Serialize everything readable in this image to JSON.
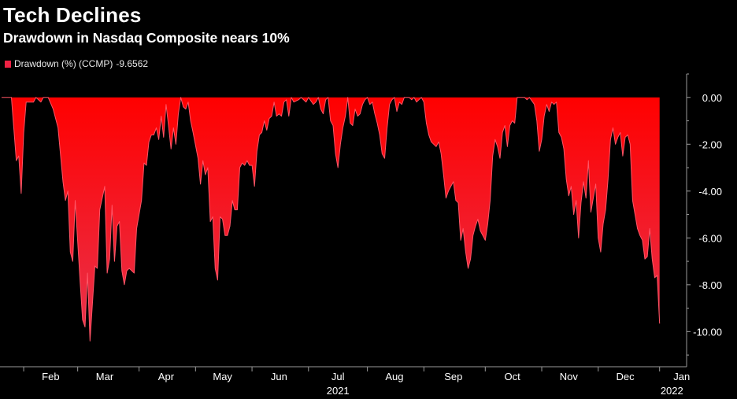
{
  "title": "Tech Declines",
  "subtitle": "Drawdown in Nasdaq Composite nears 10%",
  "legend": {
    "label": "Drawdown (%) (CCMP)",
    "last_value": "-9.6562",
    "color": "#ee2244"
  },
  "colors": {
    "fill_top": "#ff0000",
    "fill_bottom": "#e8344e",
    "line": "#ff5566",
    "axis": "#9a9a9a",
    "text": "#ffffff"
  },
  "chart_data": {
    "type": "area",
    "title": "Tech Declines",
    "subtitle": "Drawdown in Nasdaq Composite nears 10%",
    "xlabel": "",
    "ylabel": "",
    "ylim": [
      -11.5,
      1.0
    ],
    "y_ticks": [
      "0.00",
      "-2.00",
      "-4.00",
      "-6.00",
      "-8.00",
      "-10.00"
    ],
    "y_tick_values": [
      0,
      -2,
      -4,
      -6,
      -8,
      -10
    ],
    "x_range_days": [
      0,
      279
    ],
    "x_ticks": [
      {
        "label": "Feb",
        "day": 20
      },
      {
        "label": "Mar",
        "day": 42
      },
      {
        "label": "Apr",
        "day": 67
      },
      {
        "label": "May",
        "day": 90
      },
      {
        "label": "Jun",
        "day": 113
      },
      {
        "label": "Jul",
        "day": 137
      },
      {
        "label": "Aug",
        "day": 160
      },
      {
        "label": "Sep",
        "day": 184
      },
      {
        "label": "Oct",
        "day": 208
      },
      {
        "label": "Nov",
        "day": 231
      },
      {
        "label": "Dec",
        "day": 254
      },
      {
        "label": "Jan",
        "day": 277
      }
    ],
    "x_minor_ticks": [
      9,
      31,
      56,
      79,
      102,
      125,
      149,
      172,
      197,
      220,
      243,
      268
    ],
    "year_labels": [
      {
        "label": "2021",
        "day": 137
      },
      {
        "label": "2022",
        "day": 273
      }
    ],
    "series": [
      {
        "name": "Drawdown (%) (CCMP)",
        "last_value": -9.6562,
        "points": [
          [
            0,
            0
          ],
          [
            4,
            0
          ],
          [
            6,
            -2.7
          ],
          [
            7,
            -2.5
          ],
          [
            8,
            -4.1
          ],
          [
            9,
            -1.5
          ],
          [
            10,
            -0.2
          ],
          [
            13,
            -0.2
          ],
          [
            14,
            0
          ],
          [
            16,
            -0.2
          ],
          [
            17,
            0
          ],
          [
            19,
            0
          ],
          [
            21,
            -0.5
          ],
          [
            23,
            -1.3
          ],
          [
            25,
            -3.6
          ],
          [
            26,
            -4.4
          ],
          [
            27,
            -4.0
          ],
          [
            28,
            -6.6
          ],
          [
            29,
            -7.0
          ],
          [
            30,
            -4.4
          ],
          [
            32,
            -7.9
          ],
          [
            33,
            -9.5
          ],
          [
            34,
            -9.8
          ],
          [
            35,
            -7.5
          ],
          [
            36,
            -10.4
          ],
          [
            38,
            -7.2
          ],
          [
            39,
            -7.3
          ],
          [
            40,
            -4.8
          ],
          [
            42,
            -3.8
          ],
          [
            43,
            -7.5
          ],
          [
            44,
            -6.9
          ],
          [
            45,
            -4.6
          ],
          [
            46,
            -7.0
          ],
          [
            47,
            -5.5
          ],
          [
            48,
            -5.3
          ],
          [
            49,
            -7.4
          ],
          [
            50,
            -8.0
          ],
          [
            51,
            -7.4
          ],
          [
            52,
            -7.3
          ],
          [
            54,
            -7.5
          ],
          [
            55,
            -5.6
          ],
          [
            57,
            -4.4
          ],
          [
            58,
            -2.8
          ],
          [
            59,
            -2.9
          ],
          [
            60,
            -1.9
          ],
          [
            61,
            -1.6
          ],
          [
            62,
            -1.6
          ],
          [
            63,
            -1.3
          ],
          [
            64,
            -1.8
          ],
          [
            65,
            -0.8
          ],
          [
            66,
            -1.7
          ],
          [
            67,
            -0.3
          ],
          [
            68,
            -1.2
          ],
          [
            69,
            -2.2
          ],
          [
            70,
            -1.3
          ],
          [
            71,
            -2.0
          ],
          [
            72,
            -0.7
          ],
          [
            73,
            0
          ],
          [
            74,
            -0.4
          ],
          [
            75,
            -0.5
          ],
          [
            76,
            -0.2
          ],
          [
            77,
            -1.0
          ],
          [
            78,
            -1.5
          ],
          [
            80,
            -2.6
          ],
          [
            81,
            -3.7
          ],
          [
            82,
            -2.7
          ],
          [
            83,
            -3.3
          ],
          [
            84,
            -3.0
          ],
          [
            85,
            -5.3
          ],
          [
            86,
            -5.1
          ],
          [
            87,
            -7.3
          ],
          [
            88,
            -7.8
          ],
          [
            89,
            -5.1
          ],
          [
            90,
            -5.2
          ],
          [
            91,
            -5.9
          ],
          [
            92,
            -5.9
          ],
          [
            93,
            -5.5
          ],
          [
            94,
            -4.4
          ],
          [
            95,
            -4.8
          ],
          [
            96,
            -4.8
          ],
          [
            97,
            -3.0
          ],
          [
            98,
            -2.8
          ],
          [
            99,
            -2.9
          ],
          [
            100,
            -2.7
          ],
          [
            101,
            -2.9
          ],
          [
            102,
            -2.9
          ],
          [
            103,
            -3.8
          ],
          [
            104,
            -2.3
          ],
          [
            105,
            -1.6
          ],
          [
            106,
            -1.5
          ],
          [
            107,
            -1.0
          ],
          [
            108,
            -1.4
          ],
          [
            109,
            -0.9
          ],
          [
            110,
            -0.8
          ],
          [
            111,
            -0.2
          ],
          [
            112,
            -0.8
          ],
          [
            113,
            -0.7
          ],
          [
            114,
            -0.8
          ],
          [
            115,
            -0.2
          ],
          [
            116,
            -0.1
          ],
          [
            117,
            -0.8
          ],
          [
            118,
            0
          ],
          [
            119,
            -0.2
          ],
          [
            121,
            -0.1
          ],
          [
            122,
            0
          ],
          [
            124,
            -0.2
          ],
          [
            125,
            0
          ],
          [
            127,
            -0.3
          ],
          [
            128,
            -0.2
          ],
          [
            129,
            0
          ],
          [
            130,
            -0.5
          ],
          [
            131,
            -0.7
          ],
          [
            132,
            -0.1
          ],
          [
            133,
            0
          ],
          [
            134,
            -1.0
          ],
          [
            135,
            -1.2
          ],
          [
            136,
            -2.4
          ],
          [
            137,
            -3.0
          ],
          [
            138,
            -2.0
          ],
          [
            139,
            -1.3
          ],
          [
            140,
            -0.8
          ],
          [
            141,
            0
          ],
          [
            142,
            -1.1
          ],
          [
            143,
            -1.2
          ],
          [
            144,
            -0.5
          ],
          [
            145,
            -0.8
          ],
          [
            146,
            -0.7
          ],
          [
            147,
            -0.3
          ],
          [
            148,
            -0.1
          ],
          [
            149,
            0
          ],
          [
            150,
            -0.3
          ],
          [
            151,
            -0.2
          ],
          [
            152,
            -0.7
          ],
          [
            153,
            -1.1
          ],
          [
            154,
            -1.6
          ],
          [
            155,
            -2.4
          ],
          [
            156,
            -2.6
          ],
          [
            157,
            -1.3
          ],
          [
            158,
            -0.3
          ],
          [
            159,
            -0.1
          ],
          [
            160,
            0
          ],
          [
            161,
            -0.6
          ],
          [
            162,
            -0.2
          ],
          [
            163,
            -0.3
          ],
          [
            164,
            0
          ],
          [
            166,
            0
          ],
          [
            167,
            -0.1
          ],
          [
            168,
            0
          ],
          [
            169,
            -0.2
          ],
          [
            170,
            -0.1
          ],
          [
            171,
            0
          ],
          [
            172,
            -0.2
          ],
          [
            173,
            -1.1
          ],
          [
            174,
            -1.6
          ],
          [
            175,
            -1.9
          ],
          [
            176,
            -2.0
          ],
          [
            177,
            -2.1
          ],
          [
            178,
            -1.9
          ],
          [
            179,
            -2.4
          ],
          [
            180,
            -3.3
          ],
          [
            181,
            -4.3
          ],
          [
            182,
            -4.0
          ],
          [
            183,
            -3.8
          ],
          [
            184,
            -3.6
          ],
          [
            185,
            -4.4
          ],
          [
            186,
            -4.5
          ],
          [
            187,
            -6.1
          ],
          [
            188,
            -5.6
          ],
          [
            189,
            -6.6
          ],
          [
            190,
            -7.3
          ],
          [
            191,
            -6.9
          ],
          [
            192,
            -5.9
          ],
          [
            193,
            -5.5
          ],
          [
            194,
            -5.2
          ],
          [
            195,
            -5.7
          ],
          [
            196,
            -5.9
          ],
          [
            197,
            -6.1
          ],
          [
            198,
            -5.4
          ],
          [
            199,
            -4.4
          ],
          [
            200,
            -2.5
          ],
          [
            201,
            -1.8
          ],
          [
            202,
            -2.1
          ],
          [
            203,
            -2.6
          ],
          [
            204,
            -1.5
          ],
          [
            205,
            -1.2
          ],
          [
            206,
            -2.1
          ],
          [
            207,
            -1.2
          ],
          [
            208,
            -1.0
          ],
          [
            209,
            -1.1
          ],
          [
            210,
            0
          ],
          [
            213,
            0
          ],
          [
            214,
            -0.1
          ],
          [
            215,
            0
          ],
          [
            217,
            -0.3
          ],
          [
            218,
            -1.0
          ],
          [
            219,
            -2.3
          ],
          [
            220,
            -1.8
          ],
          [
            221,
            -0.8
          ],
          [
            222,
            -0.3
          ],
          [
            223,
            -0.6
          ],
          [
            224,
            -0.2
          ],
          [
            225,
            -0.3
          ],
          [
            226,
            -0.2
          ],
          [
            227,
            -1.5
          ],
          [
            228,
            -1.7
          ],
          [
            229,
            -2.2
          ],
          [
            230,
            -3.5
          ],
          [
            231,
            -4.2
          ],
          [
            232,
            -3.8
          ],
          [
            233,
            -5.0
          ],
          [
            234,
            -4.4
          ],
          [
            235,
            -6.0
          ],
          [
            236,
            -4.5
          ],
          [
            237,
            -3.6
          ],
          [
            238,
            -4.3
          ],
          [
            239,
            -2.7
          ],
          [
            240,
            -4.9
          ],
          [
            241,
            -4.3
          ],
          [
            242,
            -3.7
          ],
          [
            243,
            -6.0
          ],
          [
            244,
            -6.6
          ],
          [
            245,
            -5.4
          ],
          [
            246,
            -4.8
          ],
          [
            247,
            -3.5
          ],
          [
            248,
            -1.8
          ],
          [
            249,
            -1.3
          ],
          [
            250,
            -2.0
          ],
          [
            251,
            -1.7
          ],
          [
            252,
            -1.5
          ],
          [
            253,
            -2.5
          ],
          [
            254,
            -1.7
          ],
          [
            255,
            -1.6
          ],
          [
            256,
            -2.0
          ],
          [
            257,
            -4.4
          ],
          [
            258,
            -5.0
          ],
          [
            259,
            -5.6
          ],
          [
            260,
            -5.9
          ],
          [
            261,
            -6.1
          ],
          [
            262,
            -6.9
          ],
          [
            263,
            -6.8
          ],
          [
            264,
            -5.6
          ],
          [
            265,
            -6.9
          ],
          [
            266,
            -7.7
          ],
          [
            267,
            -7.6
          ],
          [
            268,
            -9.6562
          ]
        ]
      }
    ]
  }
}
